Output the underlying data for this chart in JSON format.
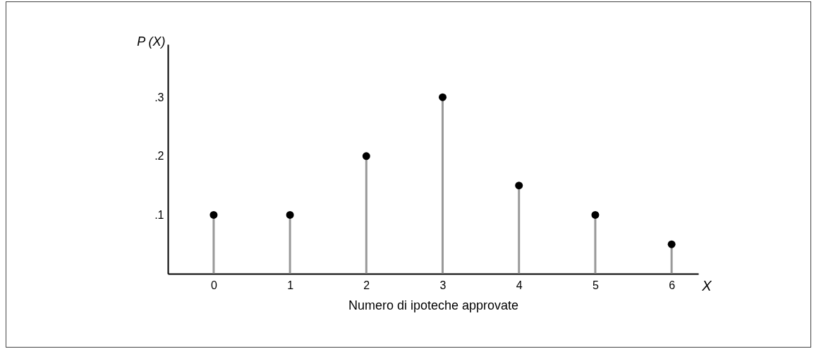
{
  "chart_data": {
    "type": "lollipop",
    "xlabel": "Numero di ipoteche approvate",
    "ylabel": "P (X)",
    "annotations": [
      "X"
    ],
    "x": [
      0,
      1,
      2,
      3,
      4,
      5,
      6
    ],
    "series": [
      {
        "color": "#000000",
        "values": [
          0.1,
          0.1,
          0.2,
          0.3,
          0.15,
          0.1,
          0.05
        ]
      }
    ],
    "xlim": [
      -0.6,
      6.35
    ],
    "xticks": [
      0,
      1,
      2,
      3,
      4,
      5,
      6
    ],
    "ylim": [
      0,
      0.39
    ],
    "yticks": [
      {
        "value": 0.1,
        "label": ".1"
      },
      {
        "value": 0.2,
        "label": ".2"
      },
      {
        "value": 0.3,
        "label": ".3"
      }
    ],
    "marker": "circle"
  }
}
